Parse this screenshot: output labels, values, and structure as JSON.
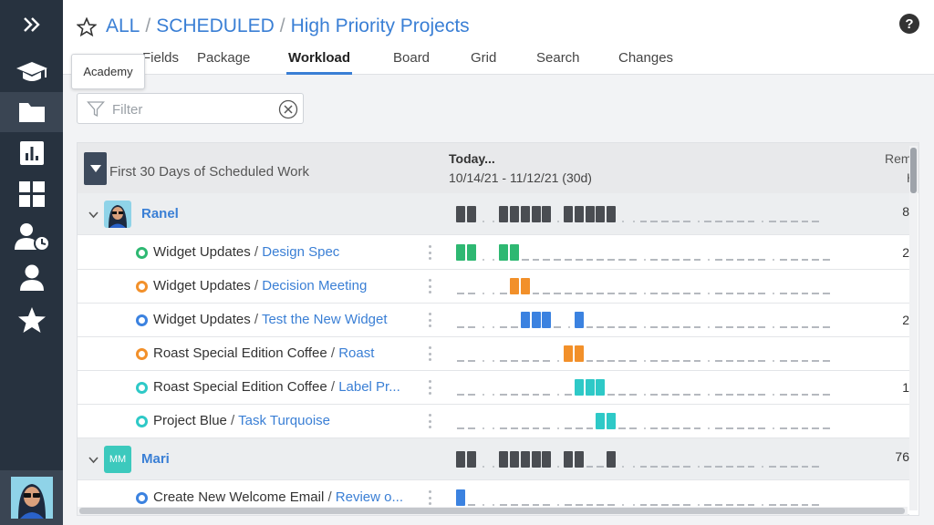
{
  "breadcrumb": [
    "ALL",
    "SCHEDULED",
    "High Priority Projects"
  ],
  "tabs": [
    {
      "label": "Fields"
    },
    {
      "label": "Package"
    },
    {
      "label": "Workload",
      "active": true
    },
    {
      "label": "Board"
    },
    {
      "label": "Grid"
    },
    {
      "label": "Search"
    },
    {
      "label": "Changes"
    }
  ],
  "help_label": "?",
  "tooltip": "Academy",
  "filter": {
    "placeholder": "Filter",
    "value": ""
  },
  "grid": {
    "group_title": "First 30 Days of Scheduled Work",
    "today_label": "Today...",
    "range_label": "10/14/21 - 11/12/21 (30d)",
    "remaining_header": "Rem",
    "remaining_unit": "H"
  },
  "colors": {
    "sidebar": "#27323f",
    "accent": "#3a7fd5",
    "green": "#2eb872",
    "orange": "#f2902a",
    "blue": "#3b82e0",
    "teal": "#2ec9c7",
    "gray": "#4a4d52"
  },
  "sidebar_items": [
    "expand-icon",
    "academy-icon",
    "folder-icon",
    "reports-icon",
    "dashboard-icon",
    "resource-schedule-icon",
    "user-icon",
    "star-icon"
  ],
  "rows": [
    {
      "type": "person",
      "name": "Ranel",
      "remaining": "8",
      "avatar": "photo",
      "cells": "GG..GGGGG.GGGGG..-----.-----.-----"
    },
    {
      "type": "task",
      "project": "Widget Updates",
      "task": "Design Spec",
      "status": "green",
      "remaining": "2",
      "cells": "NN..NN-----------.-----.-----.-----"
    },
    {
      "type": "task",
      "project": "Widget Updates",
      "task": "Decision Meeting",
      "status": "orange",
      "remaining": "",
      "cells": "--..-OO----------.-----.-----.-----"
    },
    {
      "type": "task",
      "project": "Widget Updates",
      "task": "Test the New Widget",
      "status": "blue",
      "remaining": "2",
      "cells": "--..--BBB-.B-----.-----.-----.-----"
    },
    {
      "type": "task",
      "project": "Roast Special Edition Coffee",
      "task": "Roast",
      "status": "orange",
      "remaining": "",
      "cells": "--..-----.OO-----.-----.-----.-----"
    },
    {
      "type": "task",
      "project": "Roast Special Edition Coffee",
      "task": "Label Pr...",
      "status": "teal",
      "remaining": "1",
      "cells": "--..-----.-TTT---.-----.-----.-----"
    },
    {
      "type": "task",
      "project": "Project Blue",
      "task": "Task Turquoise",
      "status": "teal",
      "remaining": "",
      "cells": "--..-----.---TT--.-----.-----.-----"
    },
    {
      "type": "person",
      "name": "Mari",
      "remaining": "76",
      "initials": "MM",
      "avatar": "initials",
      "cells": "GG..GGGGG.GG--G..-----.-----.-----"
    },
    {
      "type": "task",
      "project": "Create New Welcome Email",
      "task": "Review o...",
      "status": "blue",
      "remaining": "",
      "cells": "B-..-----.-----..-----.-----.-----"
    }
  ]
}
